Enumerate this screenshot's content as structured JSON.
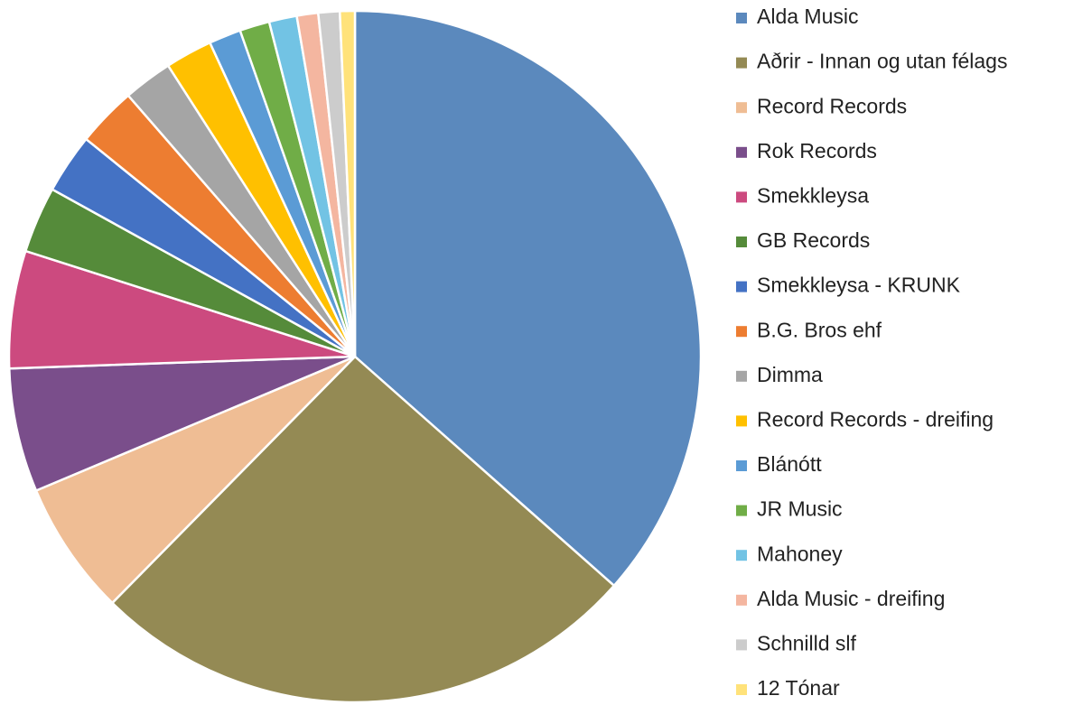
{
  "chart_data": {
    "type": "pie",
    "categories": [
      "Alda Music",
      "Aðrir - Innan og utan félags",
      "Record Records",
      "Rok Records",
      "Smekkleysa",
      "GB Records",
      "Smekkleysa - KRUNK",
      "B.G. Bros ehf",
      "Dimma",
      "Record Records - dreifing",
      "Blánótt",
      "JR Music",
      "Mahoney",
      "Alda Music - dreifing",
      "Schnilld slf",
      "12 Tónar"
    ],
    "values": [
      36.6,
      25.9,
      6.3,
      5.8,
      5.5,
      3.1,
      2.8,
      2.8,
      2.3,
      2.2,
      1.5,
      1.4,
      1.3,
      1.0,
      1.0,
      0.7
    ],
    "colors": [
      "#5b89bd",
      "#948a54",
      "#efbd94",
      "#7a4e8b",
      "#cc4a7f",
      "#558b3a",
      "#4472c4",
      "#ed7d31",
      "#a5a5a5",
      "#ffc000",
      "#5b9bd5",
      "#70ad47",
      "#72c3e4",
      "#f4b6a0",
      "#cccccc",
      "#ffe27a"
    ],
    "legend": "right"
  }
}
